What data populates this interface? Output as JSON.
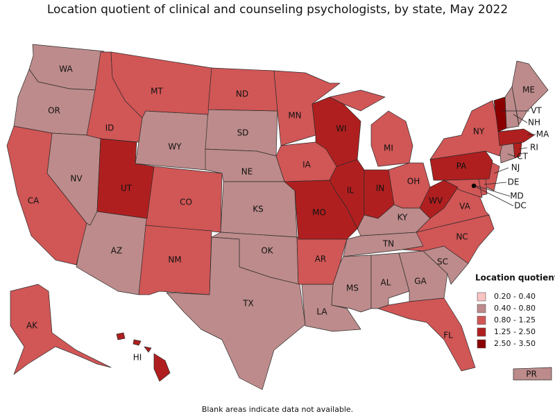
{
  "title": "Location quotient of clinical and counseling psychologists, by state, May 2022",
  "legend": {
    "title": "Location quotient",
    "items": [
      {
        "label": "0.20 - 0.40",
        "color": "#f9c4c4",
        "states": []
      },
      {
        "label": "0.40 - 0.80",
        "color": "#bd8b8b",
        "states": [
          "WA",
          "OR",
          "NV",
          "AZ",
          "WY",
          "SD",
          "NE",
          "KS",
          "OK",
          "TX",
          "LA",
          "MS",
          "AL",
          "GA",
          "SC",
          "TN",
          "KY",
          "ME",
          "NH",
          "CT",
          "PR"
        ]
      },
      {
        "label": "0.80 - 1.25",
        "color": "#d15656",
        "states": [
          "CA",
          "ID",
          "MT",
          "ND",
          "MN",
          "IA",
          "CO",
          "NM",
          "AR",
          "MI",
          "OH",
          "NY",
          "VA",
          "NC",
          "FL",
          "AK",
          "NJ",
          "DE",
          "MD"
        ]
      },
      {
        "label": "1.25 - 2.50",
        "color": "#b01f1f",
        "states": [
          "UT",
          "WI",
          "IL",
          "IN",
          "MO",
          "PA",
          "WV",
          "HI",
          "MA",
          "RI"
        ]
      },
      {
        "label": "2.50 - 3.50",
        "color": "#8a0000",
        "states": [
          "VT",
          "DC"
        ]
      }
    ]
  },
  "note": "Blank areas indicate data not available."
}
